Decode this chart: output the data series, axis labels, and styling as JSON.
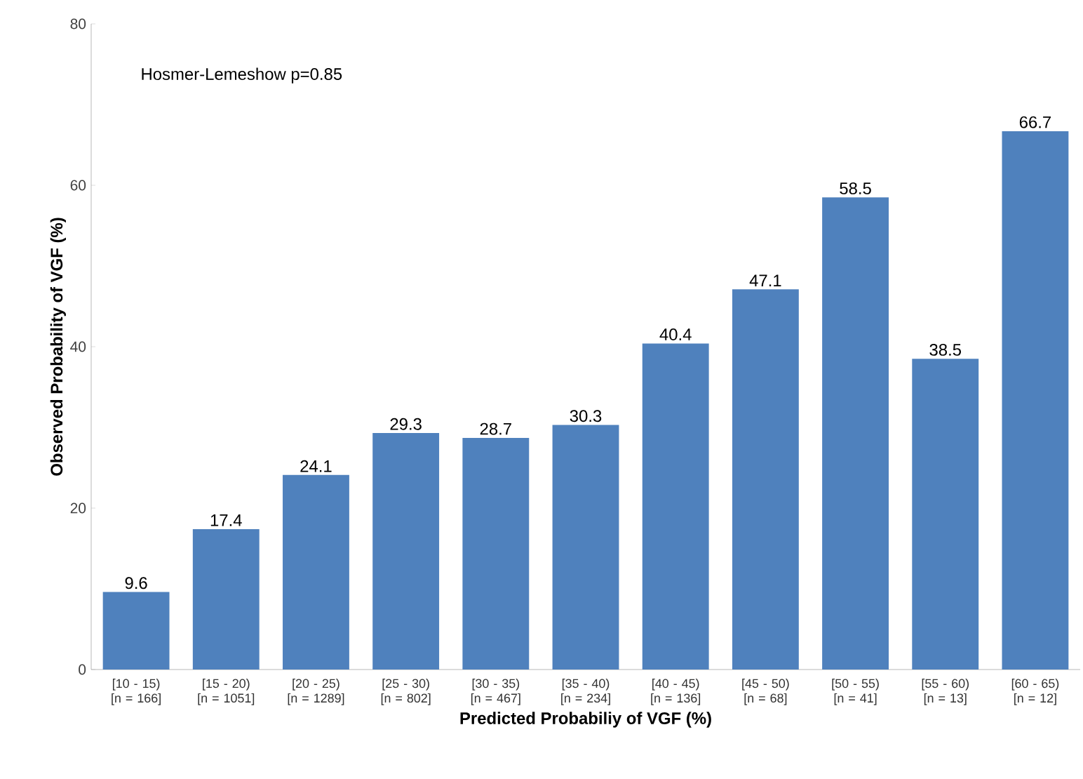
{
  "chart_data": {
    "type": "bar",
    "xlabel": "Predicted Probabiliy of VGF (%)",
    "ylabel": "Observed Probability of VGF (%)",
    "annotations": [
      "Hosmer-Lemeshow p=0.85"
    ],
    "categories": [
      "[10 - 15) [n = 166]",
      "[15 - 20) [n = 1051]",
      "[20 - 25) [n = 1289]",
      "[25 - 30) [n = 802]",
      "[30 - 35) [n = 467]",
      "[35 - 40) [n = 234]",
      "[40 - 45) [n = 136]",
      "[45 - 50) [n = 68]",
      "[50 - 55) [n = 41]",
      "[55 - 60) [n = 13]",
      "[60 - 65) [n = 12]"
    ],
    "values": [
      9.6,
      17.4,
      24.1,
      29.3,
      28.7,
      30.3,
      40.4,
      47.1,
      58.5,
      38.5,
      66.7
    ],
    "color": "#4f81bd",
    "ylim": [
      0,
      80
    ],
    "yticks": [
      0,
      20,
      40,
      60,
      80
    ],
    "data_labels": true
  }
}
